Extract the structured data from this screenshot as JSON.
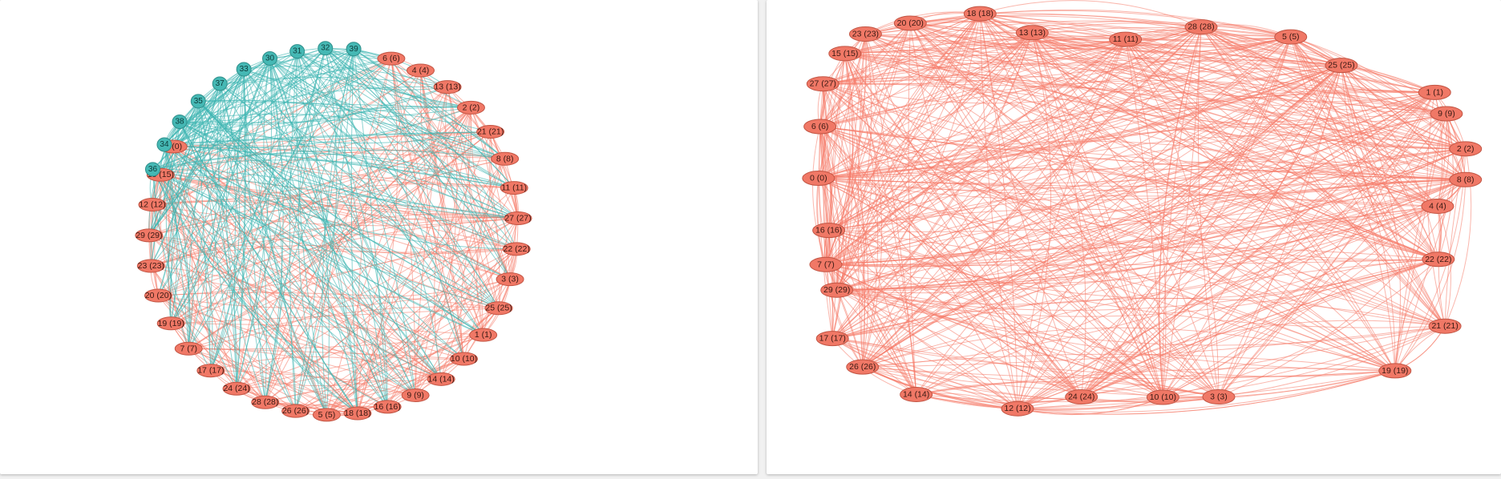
{
  "colors": {
    "salmon_node": "#f07866",
    "salmon_stroke": "#c25544",
    "salmon_edge": "#f57a68",
    "teal_node": "#45b8b4",
    "teal_stroke": "#2f8f8b",
    "teal_edge": "#3fb6b2"
  },
  "left_graph": {
    "salmon_nodes": [
      "6 (6)",
      "4 (4)",
      "13 (13)",
      "2 (2)",
      "21 (21)",
      "8 (8)",
      "11 (11)",
      "27 (27)",
      "22 (22)",
      "3 (3)",
      "25 (25)",
      "1 (1)",
      "10 (10)",
      "14 (14)",
      "9 (9)",
      "16 (16)",
      "18 (18)",
      "5 (5)",
      "26 (26)",
      "28 (28)",
      "24 (24)",
      "17 (17)",
      "7 (7)",
      "19 (19)",
      "20 (20)",
      "23 (23)",
      "29 (29)",
      "12 (12)",
      "15 (15)",
      "0 (0)"
    ],
    "teal_nodes": [
      "36",
      "34",
      "38",
      "35",
      "37",
      "33",
      "30",
      "31",
      "32",
      "39"
    ]
  },
  "right_graph": {
    "nodes": [
      "18 (18)",
      "20 (20)",
      "23 (23)",
      "13 (13)",
      "11 (11)",
      "28 (28)",
      "5 (5)",
      "15 (15)",
      "25 (25)",
      "27 (27)",
      "1 (1)",
      "9 (9)",
      "6 (6)",
      "2 (2)",
      "0 (0)",
      "8 (8)",
      "4 (4)",
      "16 (16)",
      "22 (22)",
      "7 (7)",
      "29 (29)",
      "21 (21)",
      "17 (17)",
      "26 (26)",
      "19 (19)",
      "14 (14)",
      "24 (24)",
      "10 (10)",
      "3 (3)",
      "12 (12)"
    ]
  }
}
